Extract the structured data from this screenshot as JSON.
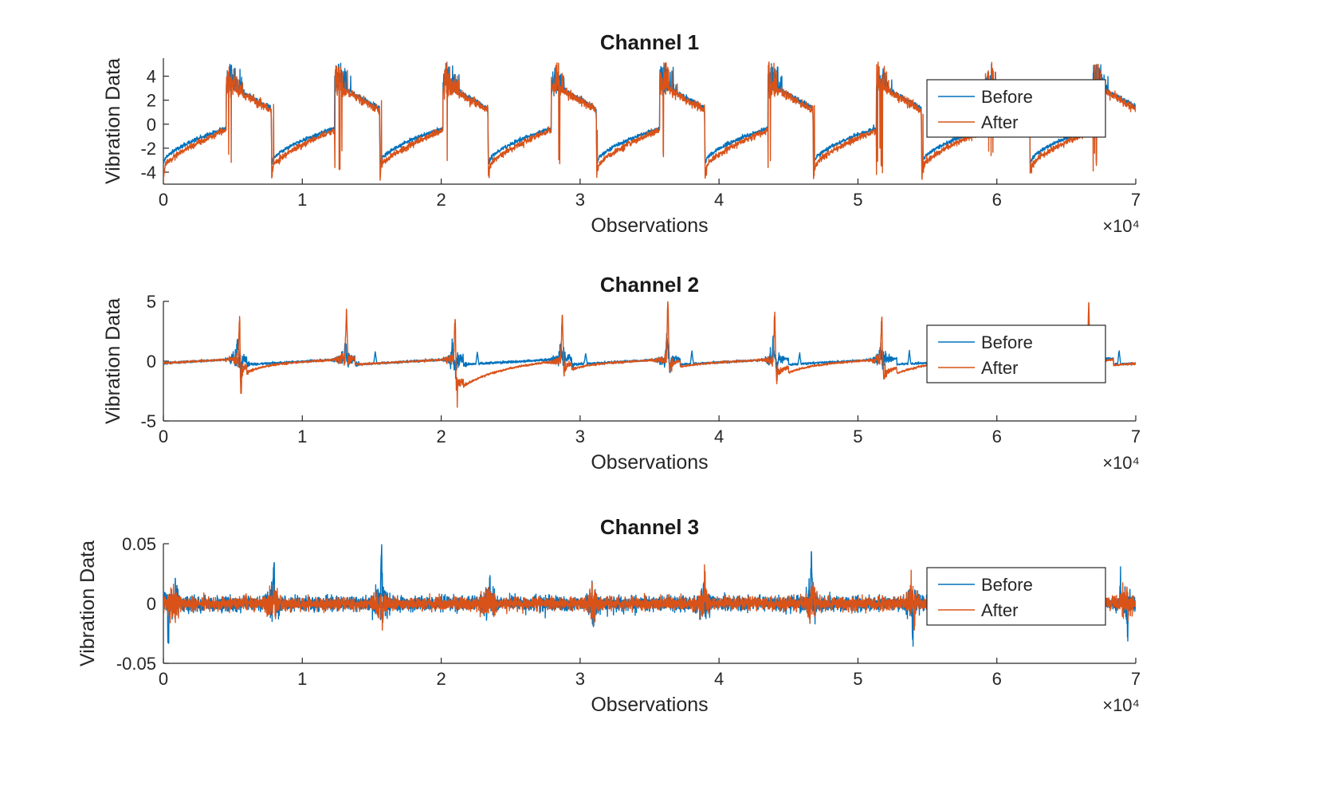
{
  "figure": {
    "background": "#ffffff",
    "axis_color": "#262626",
    "text_color": "#262626"
  },
  "chart_data": [
    {
      "type": "line",
      "title": "Channel 1",
      "xlabel": "Observations",
      "ylabel": "Vibration Data",
      "x_exponent_label": "×10⁴",
      "xlim": [
        0,
        70000
      ],
      "xticks": [
        0,
        10000,
        20000,
        30000,
        40000,
        50000,
        60000,
        70000
      ],
      "xticklabels": [
        "0",
        "1",
        "2",
        "3",
        "4",
        "5",
        "6",
        "7"
      ],
      "ylim": [
        -5,
        5.5
      ],
      "yticks": [
        -4,
        -2,
        0,
        2,
        4
      ],
      "yticklabels": [
        "-4",
        "-2",
        "0",
        "2",
        "4"
      ],
      "grid": false,
      "legend": {
        "entries": [
          "Before",
          "After"
        ],
        "location": "northeast"
      },
      "series": [
        {
          "name": "Before",
          "color": "#0072BD"
        },
        {
          "name": "After",
          "color": "#D95319"
        }
      ],
      "waveform": {
        "kind": "periodic_sawtooth",
        "period": 7800,
        "ramp_fraction": 0.58,
        "ramp_from": -3.2,
        "ramp_to": -0.35,
        "ramp_curve": 0.6,
        "burst_fraction": 0.08,
        "burst_level": 3.3,
        "burst_peak": 5.2,
        "decay_from": 3.05,
        "decay_to": 1.3,
        "drop_undershoot_before": 0.35,
        "drop_undershoot_after": 1.05,
        "noise_before": 0.08,
        "noise_after": 0.13,
        "after_ramp_offset": -0.55
      }
    },
    {
      "type": "line",
      "title": "Channel 2",
      "xlabel": "Observations",
      "ylabel": "Vibration Data",
      "x_exponent_label": "×10⁴",
      "xlim": [
        0,
        70000
      ],
      "xticks": [
        0,
        10000,
        20000,
        30000,
        40000,
        50000,
        60000,
        70000
      ],
      "xticklabels": [
        "0",
        "1",
        "2",
        "3",
        "4",
        "5",
        "6",
        "7"
      ],
      "ylim": [
        -5,
        5
      ],
      "yticks": [
        -5,
        0,
        5
      ],
      "yticklabels": [
        "-5",
        "0",
        "5"
      ],
      "grid": false,
      "legend": {
        "entries": [
          "Before",
          "After"
        ],
        "location": "northeast"
      },
      "series": [
        {
          "name": "Before",
          "color": "#0072BD"
        },
        {
          "name": "After",
          "color": "#D95319"
        }
      ],
      "waveform": {
        "kind": "baseline_spikes",
        "period": 7800,
        "drift_min": -0.28,
        "drift_max": 0.22,
        "noise_before": 0.045,
        "noise_after": 0.04,
        "burst_centers": [
          5400,
          13150,
          20950,
          28700,
          36300,
          44000,
          51700,
          59500,
          66600
        ],
        "burst_width": 550,
        "burst_amp_before": 0.35,
        "burst_amp_after": 0.25,
        "spikes_before": [
          [
            5350,
            1.25
          ],
          [
            5600,
            -0.9
          ],
          [
            13100,
            1.35
          ],
          [
            15250,
            1.0
          ],
          [
            20800,
            1.55
          ],
          [
            21050,
            -1.1
          ],
          [
            22600,
            1.0
          ],
          [
            28600,
            1.25
          ],
          [
            30400,
            0.9
          ],
          [
            36250,
            2.3
          ],
          [
            36500,
            -0.95
          ],
          [
            38050,
            1.1
          ],
          [
            43900,
            1.5
          ],
          [
            44150,
            -0.85
          ],
          [
            45800,
            0.9
          ],
          [
            51600,
            1.3
          ],
          [
            53700,
            1.05
          ],
          [
            59600,
            0.8
          ],
          [
            61400,
            0.9
          ],
          [
            66500,
            1.35
          ],
          [
            68800,
            1.15
          ]
        ],
        "spikes_after_up": [
          [
            5500,
            5.3
          ],
          [
            13180,
            4.7
          ],
          [
            21020,
            5.4
          ],
          [
            28720,
            4.6
          ],
          [
            36320,
            5.3
          ],
          [
            44020,
            5.3
          ],
          [
            51720,
            4.4
          ],
          [
            66620,
            5.3
          ]
        ],
        "spikes_after_down": [
          [
            5560,
            -5.3
          ],
          [
            13240,
            -0.7
          ],
          [
            21080,
            -5.0
          ],
          [
            28780,
            -1.3
          ],
          [
            36380,
            -0.7
          ],
          [
            44080,
            -2.8
          ],
          [
            51780,
            -1.8
          ],
          [
            66680,
            -0.6
          ]
        ],
        "recovery_dips_after": [
          [
            5650,
            -0.85,
            1400
          ],
          [
            21150,
            -2.1,
            2800
          ],
          [
            28850,
            -0.6,
            900
          ],
          [
            36430,
            -0.5,
            900
          ],
          [
            44150,
            -1.15,
            1700
          ],
          [
            51850,
            -1.25,
            1800
          ],
          [
            66730,
            -0.5,
            900
          ]
        ]
      }
    },
    {
      "type": "line",
      "title": "Channel 3",
      "xlabel": "Observations",
      "ylabel": "Vibration Data",
      "x_exponent_label": "×10⁴",
      "xlim": [
        0,
        70000
      ],
      "xticks": [
        0,
        10000,
        20000,
        30000,
        40000,
        50000,
        60000,
        70000
      ],
      "xticklabels": [
        "0",
        "1",
        "2",
        "3",
        "4",
        "5",
        "6",
        "7"
      ],
      "ylim": [
        -0.05,
        0.05
      ],
      "yticks": [
        -0.05,
        0,
        0.05
      ],
      "yticklabels": [
        "-0.05",
        "0",
        "0.05"
      ],
      "grid": false,
      "legend": {
        "entries": [
          "Before",
          "After"
        ],
        "location": "northeast"
      },
      "series": [
        {
          "name": "Before",
          "color": "#0072BD"
        },
        {
          "name": "After",
          "color": "#D95319"
        }
      ],
      "waveform": {
        "kind": "noise_bursts",
        "noise_before": 0.003,
        "noise_after": 0.0026,
        "burst_centers": [
          700,
          7900,
          15650,
          23400,
          30900,
          38850,
          46600,
          53900,
          61500,
          69300
        ],
        "burst_width": 400,
        "burst_extra": 0.005,
        "spikes_before": [
          [
            350,
            -0.033
          ],
          [
            900,
            0.021
          ],
          [
            7950,
            0.034
          ],
          [
            15700,
            0.042
          ],
          [
            23450,
            0.015
          ],
          [
            30950,
            -0.019
          ],
          [
            38900,
            0.021
          ],
          [
            46650,
            0.038
          ],
          [
            53950,
            -0.028
          ],
          [
            68900,
            0.02
          ],
          [
            69400,
            -0.026
          ]
        ],
        "spikes_after": [
          [
            15800,
            -0.014
          ],
          [
            38980,
            0.014
          ],
          [
            46780,
            0.014
          ],
          [
            54060,
            -0.014
          ]
        ]
      }
    }
  ]
}
